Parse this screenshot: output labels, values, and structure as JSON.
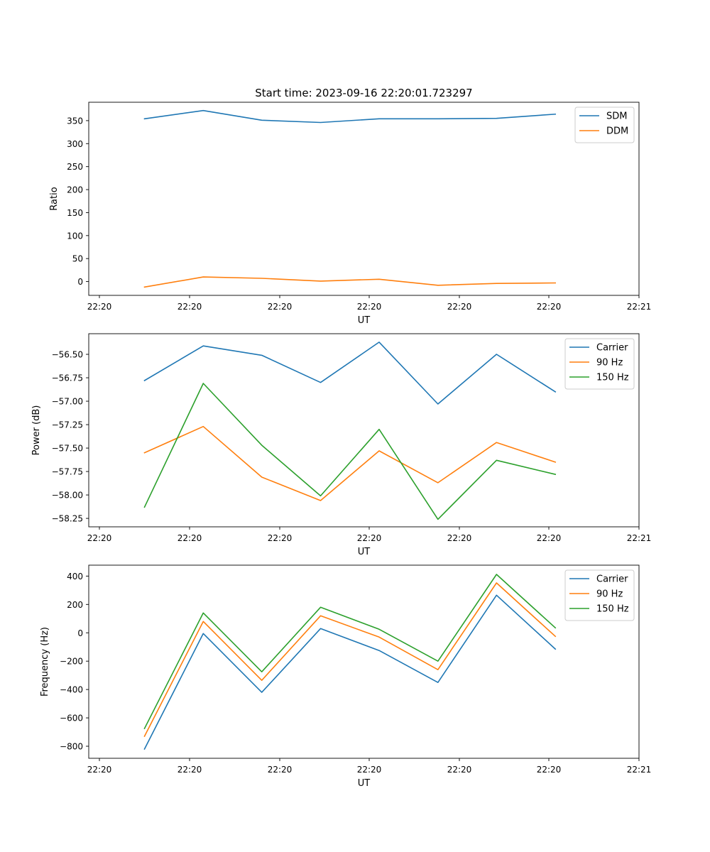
{
  "title": "Start time: 2023-09-16 22:20:01.723297",
  "colors": {
    "blue": "#1f77b4",
    "orange": "#ff7f0e",
    "green": "#2ca02c"
  },
  "chart_data": [
    {
      "type": "line",
      "title": "Start time: 2023-09-16 22:20:01.723297",
      "xlabel": "UT",
      "ylabel": "Ratio",
      "x_tick_labels": [
        "22:20",
        "22:20",
        "22:20",
        "22:20",
        "22:20",
        "22:20",
        "22:21"
      ],
      "y_ticks": [
        0,
        50,
        100,
        150,
        200,
        250,
        300,
        350
      ],
      "y_tick_labels": [
        "0",
        "50",
        "100",
        "150",
        "200",
        "250",
        "300",
        "350"
      ],
      "ylim": [
        -30,
        390
      ],
      "legend_position": "top-right",
      "grid": false,
      "series": [
        {
          "name": "SDM",
          "color": "#1f77b4",
          "values": [
            354,
            372,
            351,
            346,
            354,
            354,
            355,
            364
          ]
        },
        {
          "name": "DDM",
          "color": "#ff7f0e",
          "values": [
            -12,
            10,
            7,
            1,
            5,
            -8,
            -4,
            -3
          ]
        }
      ]
    },
    {
      "type": "line",
      "title": "",
      "xlabel": "UT",
      "ylabel": "Power (dB)",
      "x_tick_labels": [
        "22:20",
        "22:20",
        "22:20",
        "22:20",
        "22:20",
        "22:20",
        "22:21"
      ],
      "y_ticks": [
        -58.25,
        -58.0,
        -57.75,
        -57.5,
        -57.25,
        -57.0,
        -56.75,
        -56.5
      ],
      "y_tick_labels": [
        "−58.25",
        "−58.00",
        "−57.75",
        "−57.50",
        "−57.25",
        "−57.00",
        "−56.75",
        "−56.50"
      ],
      "ylim": [
        -58.34,
        -56.28
      ],
      "legend_position": "top-right",
      "grid": false,
      "series": [
        {
          "name": "Carrier",
          "color": "#1f77b4",
          "values": [
            -56.78,
            -56.41,
            -56.51,
            -56.8,
            -56.37,
            -57.03,
            -56.5,
            -56.9
          ]
        },
        {
          "name": "90 Hz",
          "color": "#ff7f0e",
          "values": [
            -57.55,
            -57.27,
            -57.81,
            -58.06,
            -57.53,
            -57.87,
            -57.44,
            -57.65
          ]
        },
        {
          "name": "150 Hz",
          "color": "#2ca02c",
          "values": [
            -58.13,
            -56.81,
            -57.47,
            -58.01,
            -57.3,
            -58.26,
            -57.63,
            -57.78
          ]
        }
      ]
    },
    {
      "type": "line",
      "title": "",
      "xlabel": "UT",
      "ylabel": "Frequency (Hz)",
      "x_tick_labels": [
        "22:20",
        "22:20",
        "22:20",
        "22:20",
        "22:20",
        "22:20",
        "22:21"
      ],
      "y_ticks": [
        -800,
        -600,
        -400,
        -200,
        0,
        200,
        400
      ],
      "y_tick_labels": [
        "−800",
        "−600",
        "−400",
        "−200",
        "0",
        "200",
        "400"
      ],
      "ylim": [
        -885,
        477
      ],
      "legend_position": "top-right",
      "grid": false,
      "series": [
        {
          "name": "Carrier",
          "color": "#1f77b4",
          "values": [
            -820,
            -5,
            -420,
            30,
            -125,
            -350,
            265,
            -115
          ]
        },
        {
          "name": "90 Hz",
          "color": "#ff7f0e",
          "values": [
            -730,
            80,
            -335,
            120,
            -30,
            -260,
            352,
            -25
          ]
        },
        {
          "name": "150 Hz",
          "color": "#2ca02c",
          "values": [
            -675,
            140,
            -275,
            180,
            25,
            -200,
            412,
            35
          ]
        }
      ]
    }
  ]
}
